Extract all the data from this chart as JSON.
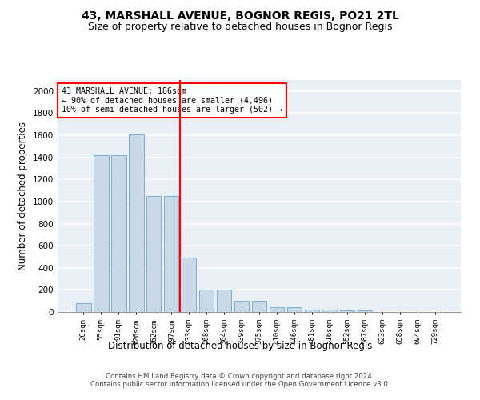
{
  "title": "43, MARSHALL AVENUE, BOGNOR REGIS, PO21 2TL",
  "subtitle": "Size of property relative to detached houses in Bognor Regis",
  "xlabel": "Distribution of detached houses by size in Bognor Regis",
  "ylabel": "Number of detached properties",
  "categories": [
    "20sqm",
    "55sqm",
    "91sqm",
    "126sqm",
    "162sqm",
    "197sqm",
    "233sqm",
    "268sqm",
    "304sqm",
    "339sqm",
    "375sqm",
    "410sqm",
    "446sqm",
    "481sqm",
    "516sqm",
    "552sqm",
    "587sqm",
    "623sqm",
    "658sqm",
    "694sqm",
    "729sqm"
  ],
  "values": [
    80,
    1420,
    1420,
    1610,
    1050,
    1050,
    490,
    200,
    200,
    105,
    105,
    40,
    40,
    25,
    25,
    15,
    15,
    0,
    0,
    0,
    0
  ],
  "bar_color": "#c9d9e8",
  "bar_edge_color": "#7bafd4",
  "red_line_x": 5.5,
  "annotation_text": "43 MARSHALL AVENUE: 186sqm\n← 90% of detached houses are smaller (4,496)\n10% of semi-detached houses are larger (502) →",
  "annotation_box_color": "white",
  "annotation_box_edge": "red",
  "footer": "Contains HM Land Registry data © Crown copyright and database right 2024.\nContains public sector information licensed under the Open Government Licence v3.0.",
  "ylim": [
    0,
    2100
  ],
  "yticks": [
    0,
    200,
    400,
    600,
    800,
    1000,
    1200,
    1400,
    1600,
    1800,
    2000
  ],
  "background_color": "#eaeff5",
  "grid_color": "white",
  "title_fontsize": 10,
  "subtitle_fontsize": 9,
  "xlabel_fontsize": 8.5,
  "ylabel_fontsize": 8.5
}
